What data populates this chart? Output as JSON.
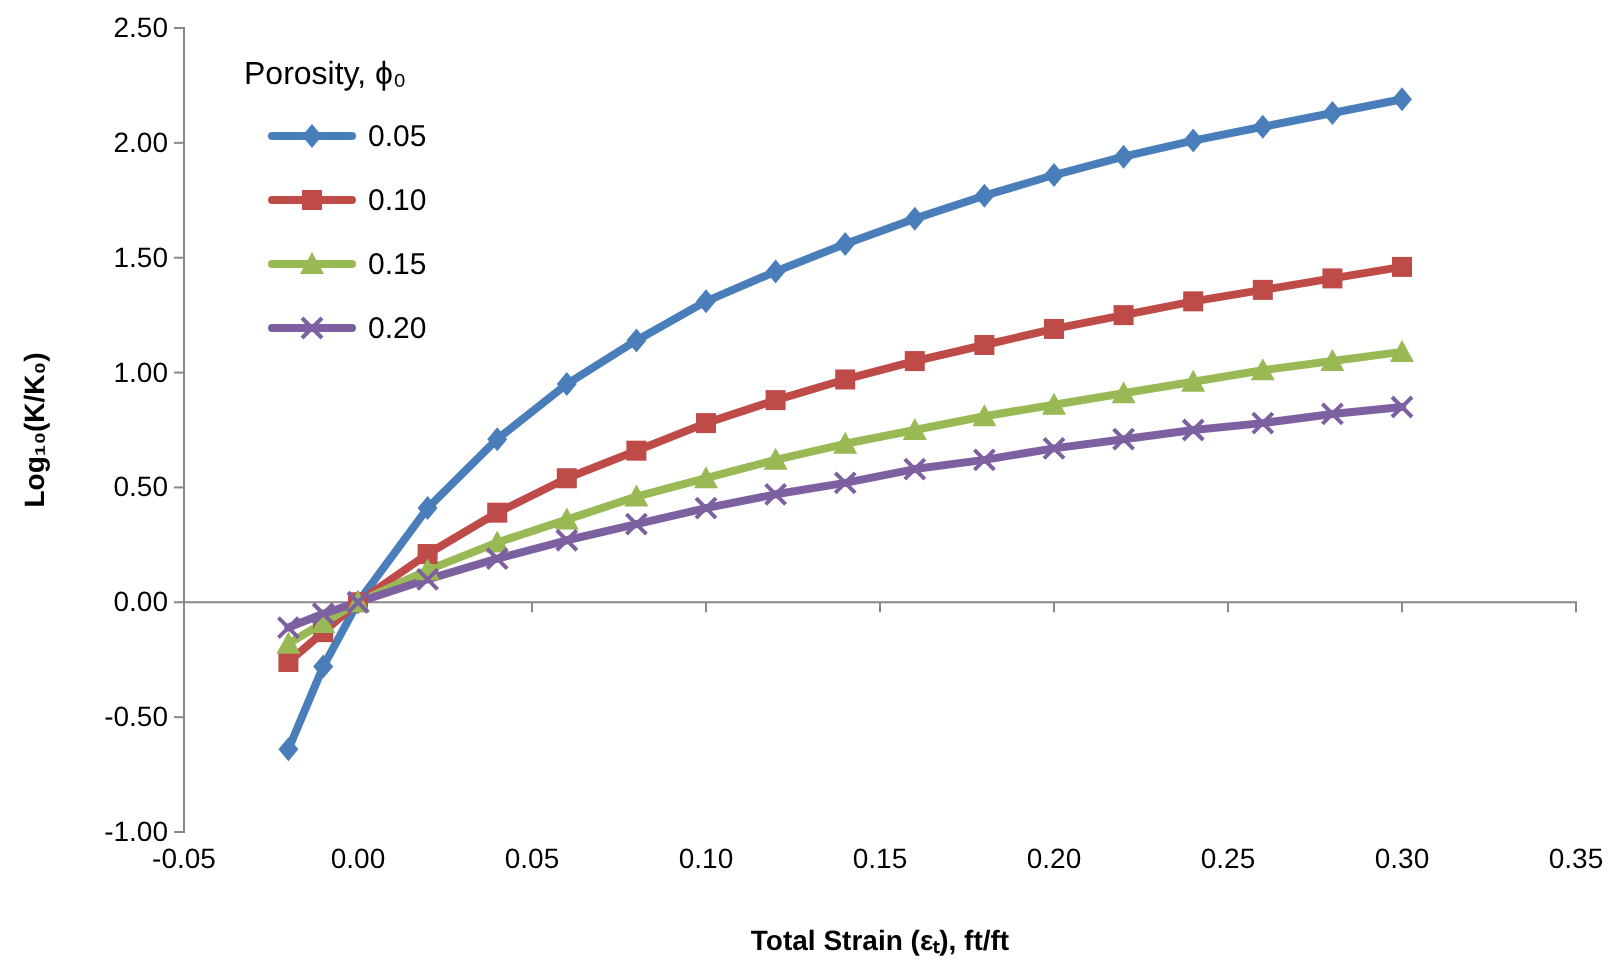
{
  "chart_data": {
    "type": "line",
    "xlabel": "Total Strain (εₜ), ft/ft",
    "ylabel": "Log₁₀(K/K₀)",
    "legend_title": "Porosity, ϕ₀",
    "legend": "top left",
    "grid": false,
    "line_style": "solid",
    "x": [
      -0.02,
      -0.01,
      0,
      0.02,
      0.04,
      0.06,
      0.08,
      0.1,
      0.12,
      0.14,
      0.16,
      0.18,
      0.2,
      0.22,
      0.24,
      0.26,
      0.28,
      0.3
    ],
    "xlim": [
      -0.05,
      0.35
    ],
    "xticks": [
      {
        "value": -0.05,
        "label": "-0.05"
      },
      {
        "value": 0,
        "label": "0.00"
      },
      {
        "value": 0.05,
        "label": "0.05"
      },
      {
        "value": 0.1,
        "label": "0.10"
      },
      {
        "value": 0.15,
        "label": "0.15"
      },
      {
        "value": 0.2,
        "label": "0.20"
      },
      {
        "value": 0.25,
        "label": "0.25"
      },
      {
        "value": 0.3,
        "label": "0.30"
      },
      {
        "value": 0.35,
        "label": "0.35"
      }
    ],
    "ylim": [
      -1,
      2.5
    ],
    "yticks": [
      {
        "value": -1,
        "label": "-1.00"
      },
      {
        "value": -0.5,
        "label": "-0.50"
      },
      {
        "value": 0,
        "label": "0.00"
      },
      {
        "value": 0.5,
        "label": "0.50"
      },
      {
        "value": 1,
        "label": "1.00"
      },
      {
        "value": 1.5,
        "label": "1.50"
      },
      {
        "value": 2,
        "label": "2.00"
      },
      {
        "value": 2.5,
        "label": "2.50"
      }
    ],
    "series": [
      {
        "name": "0.05",
        "color": "#4a7ebb",
        "marker": "diamond",
        "values": [
          -0.64,
          -0.28,
          0,
          0.41,
          0.71,
          0.95,
          1.14,
          1.31,
          1.44,
          1.56,
          1.67,
          1.77,
          1.86,
          1.94,
          2.01,
          2.07,
          2.13,
          2.19
        ]
      },
      {
        "name": "0.10",
        "color": "#be4b48",
        "marker": "square",
        "values": [
          -0.26,
          -0.13,
          0,
          0.21,
          0.39,
          0.54,
          0.66,
          0.78,
          0.88,
          0.97,
          1.05,
          1.12,
          1.19,
          1.25,
          1.31,
          1.36,
          1.41,
          1.46
        ]
      },
      {
        "name": "0.15",
        "color": "#98b954",
        "marker": "triangle",
        "values": [
          -0.18,
          -0.09,
          0,
          0.14,
          0.26,
          0.36,
          0.46,
          0.54,
          0.62,
          0.69,
          0.75,
          0.81,
          0.86,
          0.91,
          0.96,
          1.01,
          1.05,
          1.09
        ]
      },
      {
        "name": "0.20",
        "color": "#7d60a0",
        "marker": "cross",
        "values": [
          -0.11,
          -0.05,
          0,
          0.1,
          0.19,
          0.27,
          0.34,
          0.41,
          0.47,
          0.52,
          0.58,
          0.62,
          0.67,
          0.71,
          0.75,
          0.78,
          0.82,
          0.85
        ]
      }
    ]
  }
}
